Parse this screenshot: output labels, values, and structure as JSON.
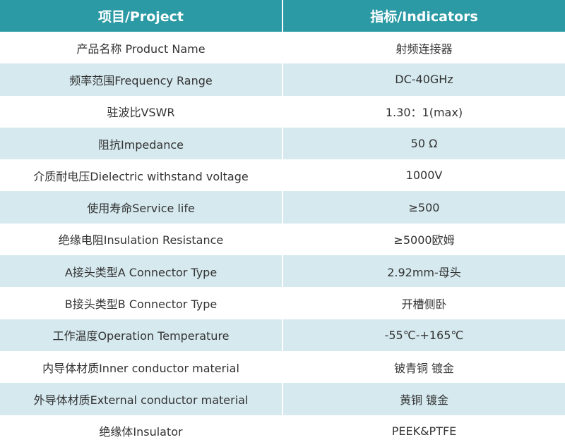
{
  "table": {
    "header": [
      "项目/Project",
      "指标/Indicators"
    ],
    "rows": [
      [
        "产品名称 Product Name",
        "射频连接器"
      ],
      [
        "频率范围Frequency Range",
        "DC-40GHz"
      ],
      [
        "驻波比VSWR",
        "1.30：1(max)"
      ],
      [
        "阻抗Impedance",
        "50 Ω"
      ],
      [
        "介质耐电压Dielectric withstand voltage",
        "1000V"
      ],
      [
        "使用寿命Service life",
        "≥500"
      ],
      [
        "绝缘电阻Insulation Resistance",
        "≥5000欧姆"
      ],
      [
        "A接头类型A Connector Type",
        "2.92mm-母头"
      ],
      [
        "B接头类型B Connector Type",
        "开槽侧卧"
      ],
      [
        "工作温度Operation Temperature",
        "-55℃-+165℃"
      ],
      [
        "内导体材质Inner conductor material",
        "铍青铜 镀金"
      ],
      [
        "外导体材质External conductor material",
        "黄铜 镀金"
      ],
      [
        "绝缘体Insulator",
        "PEEK&PTFE"
      ]
    ]
  }
}
